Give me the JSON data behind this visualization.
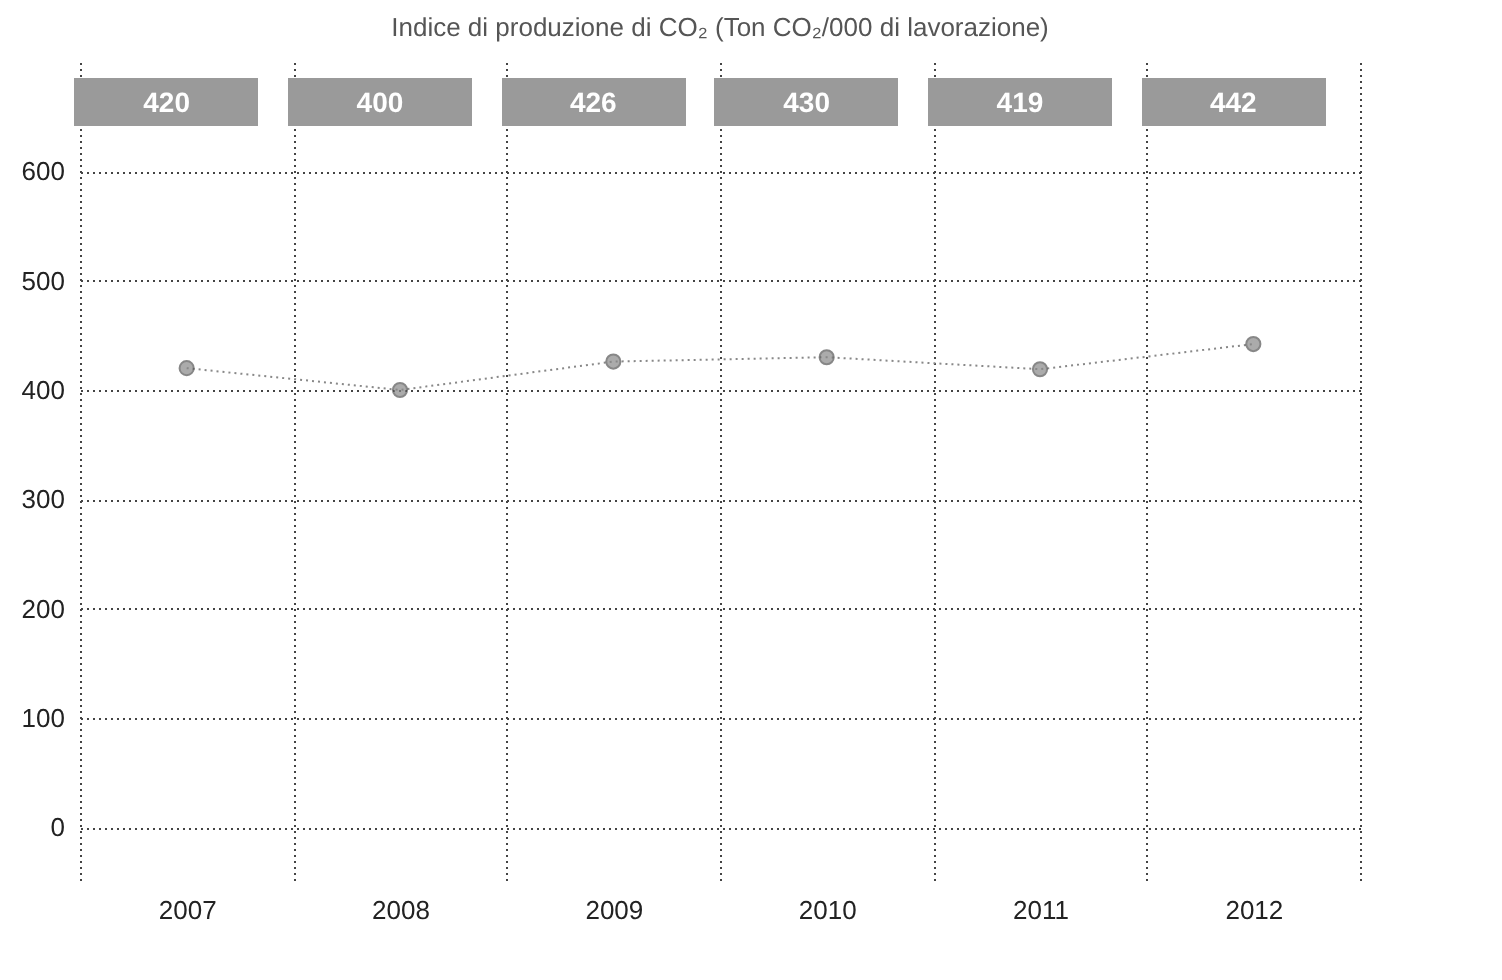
{
  "chart_data": {
    "type": "line",
    "title": "Indice di produzione di CO₂ (Ton CO₂/000 di lavorazione)",
    "categories": [
      "2007",
      "2008",
      "2009",
      "2010",
      "2011",
      "2012"
    ],
    "series": [
      {
        "color": "#888888",
        "values": [
          420,
          400,
          426,
          430,
          419,
          442
        ]
      }
    ],
    "ylim": [
      -50,
      700
    ],
    "yticks": [
      0,
      100,
      200,
      300,
      400,
      500,
      600
    ],
    "grid": true,
    "marker": "circle",
    "line_style": "dotted",
    "annotations": [
      "420",
      "400",
      "426",
      "430",
      "419",
      "442"
    ]
  }
}
